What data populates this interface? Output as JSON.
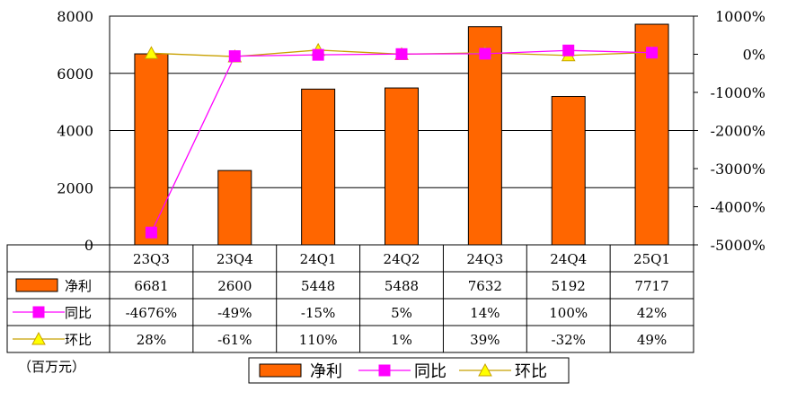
{
  "chart_data": {
    "type": "bar",
    "categories": [
      "23Q3",
      "23Q4",
      "24Q1",
      "24Q2",
      "24Q3",
      "24Q4",
      "25Q1"
    ],
    "unit_label": "（百万元）",
    "y_left": {
      "ylim": [
        0,
        8000
      ],
      "ticks": [
        "0",
        "2000",
        "4000",
        "6000",
        "8000"
      ],
      "tick_values": [
        0,
        2000,
        4000,
        6000,
        8000
      ]
    },
    "y_right": {
      "ylim": [
        -5000,
        1000
      ],
      "ticks": [
        "-5000%",
        "-4000%",
        "-3000%",
        "-2000%",
        "-1000%",
        "0%",
        "1000%"
      ],
      "tick_values": [
        -5000,
        -4000,
        -3000,
        -2000,
        -1000,
        0,
        1000
      ]
    },
    "series": [
      {
        "name": "净利",
        "kind": "bar",
        "axis": "left",
        "color": "#FF6600",
        "values": [
          6681,
          2600,
          5448,
          5488,
          7632,
          5192,
          7717
        ],
        "labels": [
          "6681",
          "2600",
          "5448",
          "5488",
          "7632",
          "5192",
          "7717"
        ]
      },
      {
        "name": "同比",
        "kind": "line",
        "axis": "right",
        "color": "#FF00FF",
        "marker": "square",
        "values": [
          -4676,
          -49,
          -15,
          5,
          14,
          100,
          42
        ],
        "labels": [
          "-4676%",
          "-49%",
          "-15%",
          "5%",
          "14%",
          "100%",
          "42%"
        ]
      },
      {
        "name": "环比",
        "kind": "line",
        "axis": "right",
        "color": "#C8A000",
        "marker_fill": "#FFFF00",
        "marker": "triangle",
        "values": [
          28,
          -61,
          110,
          1,
          39,
          -32,
          49
        ],
        "labels": [
          "28%",
          "-61%",
          "110%",
          "1%",
          "39%",
          "-32%",
          "49%"
        ]
      }
    ],
    "grid": true,
    "legend_position": "bottom"
  }
}
